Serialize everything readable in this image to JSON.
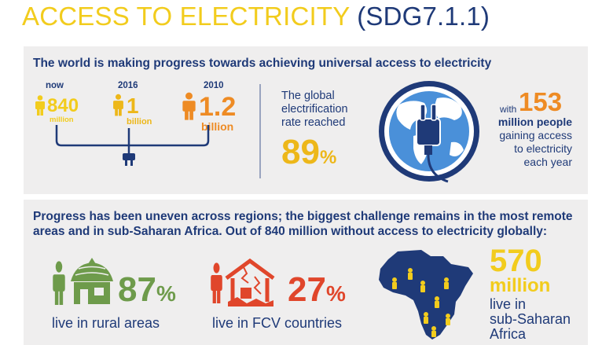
{
  "title": {
    "main": "ACCESS TO ELECTRICITY",
    "code": "(SDG7.1.1)"
  },
  "panel1": {
    "heading": "The world is making progress towards achieving universal access to electricity",
    "timeline": [
      {
        "label": "now",
        "number": "840",
        "unit": "million",
        "color": "#F2CC1D"
      },
      {
        "label": "2016",
        "number": "1",
        "unit": "billion",
        "color": "#EDB719"
      },
      {
        "label": "2010",
        "number": "1.2",
        "unit": "billion",
        "color": "#EE8B24"
      }
    ],
    "rate": {
      "line1": "The global",
      "line2": "electrification",
      "line3": "rate reached",
      "value": "89",
      "unit": "%"
    },
    "gain": {
      "with": "with",
      "number": "153",
      "bold": "million people",
      "line1": "gaining access",
      "line2": "to electricity",
      "line3": "each year"
    }
  },
  "panel2": {
    "heading_line1": "Progress has been uneven across regions; the biggest challenge remains in the most remote",
    "heading_line2": "areas and in sub-Saharan Africa. Out of 840 million without access to electricity globally:",
    "rural": {
      "value": "87",
      "unit": "%",
      "label": "live in rural areas"
    },
    "fcv": {
      "value": "27",
      "unit": "%",
      "label": "live in FCV countries"
    },
    "africa": {
      "number": "570",
      "unit": "million",
      "line1": "live in",
      "line2": "sub-Saharan",
      "line3": "Africa"
    }
  },
  "colors": {
    "navy": "#1F3A78",
    "yellow": "#F2CC1D",
    "orange": "#EE8B24",
    "green": "#6E9B4B",
    "red": "#E0462B",
    "panel": "#EFEEEE"
  },
  "icons": [
    "person-icon",
    "plug-icon",
    "globe-plug-icon",
    "hut-icon",
    "damaged-house-icon",
    "africa-map-icon"
  ]
}
